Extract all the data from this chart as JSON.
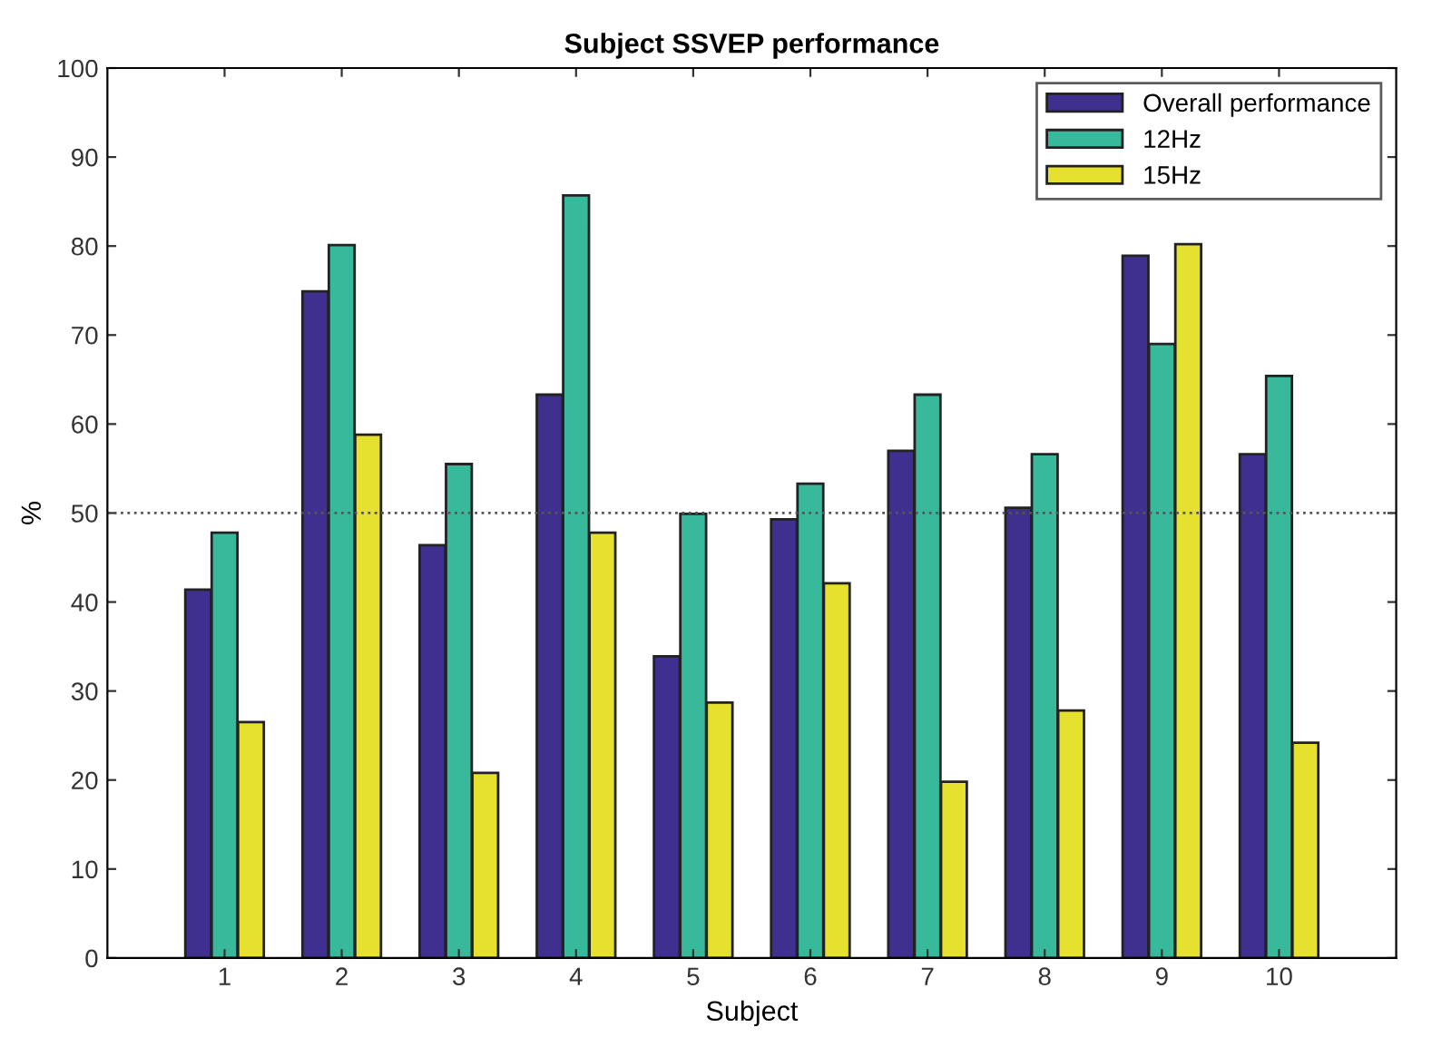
{
  "chart_data": {
    "type": "bar",
    "title": "Subject SSVEP performance",
    "xlabel": "Subject",
    "ylabel": "%",
    "categories": [
      "1",
      "2",
      "3",
      "4",
      "5",
      "6",
      "7",
      "8",
      "9",
      "10"
    ],
    "series": [
      {
        "name": "Overall performance",
        "color": "#3f2f8f",
        "values": [
          41.4,
          74.9,
          46.4,
          63.3,
          33.9,
          49.3,
          57.0,
          50.6,
          78.9,
          56.6
        ]
      },
      {
        "name": "12Hz",
        "color": "#38b99c",
        "values": [
          47.8,
          80.1,
          55.5,
          85.7,
          49.9,
          53.3,
          63.3,
          56.6,
          69.0,
          65.4
        ]
      },
      {
        "name": "15Hz",
        "color": "#e6e02e",
        "values": [
          26.5,
          58.8,
          20.8,
          47.8,
          28.7,
          42.1,
          19.8,
          27.8,
          80.2,
          24.2
        ]
      }
    ],
    "ylim": [
      0,
      100
    ],
    "yticks": [
      0,
      10,
      20,
      30,
      40,
      50,
      60,
      70,
      80,
      90,
      100
    ],
    "ref_lines": [
      {
        "axis": "y",
        "value": 50,
        "line_style": "dotted"
      }
    ],
    "grid": false,
    "legend": "top right"
  }
}
